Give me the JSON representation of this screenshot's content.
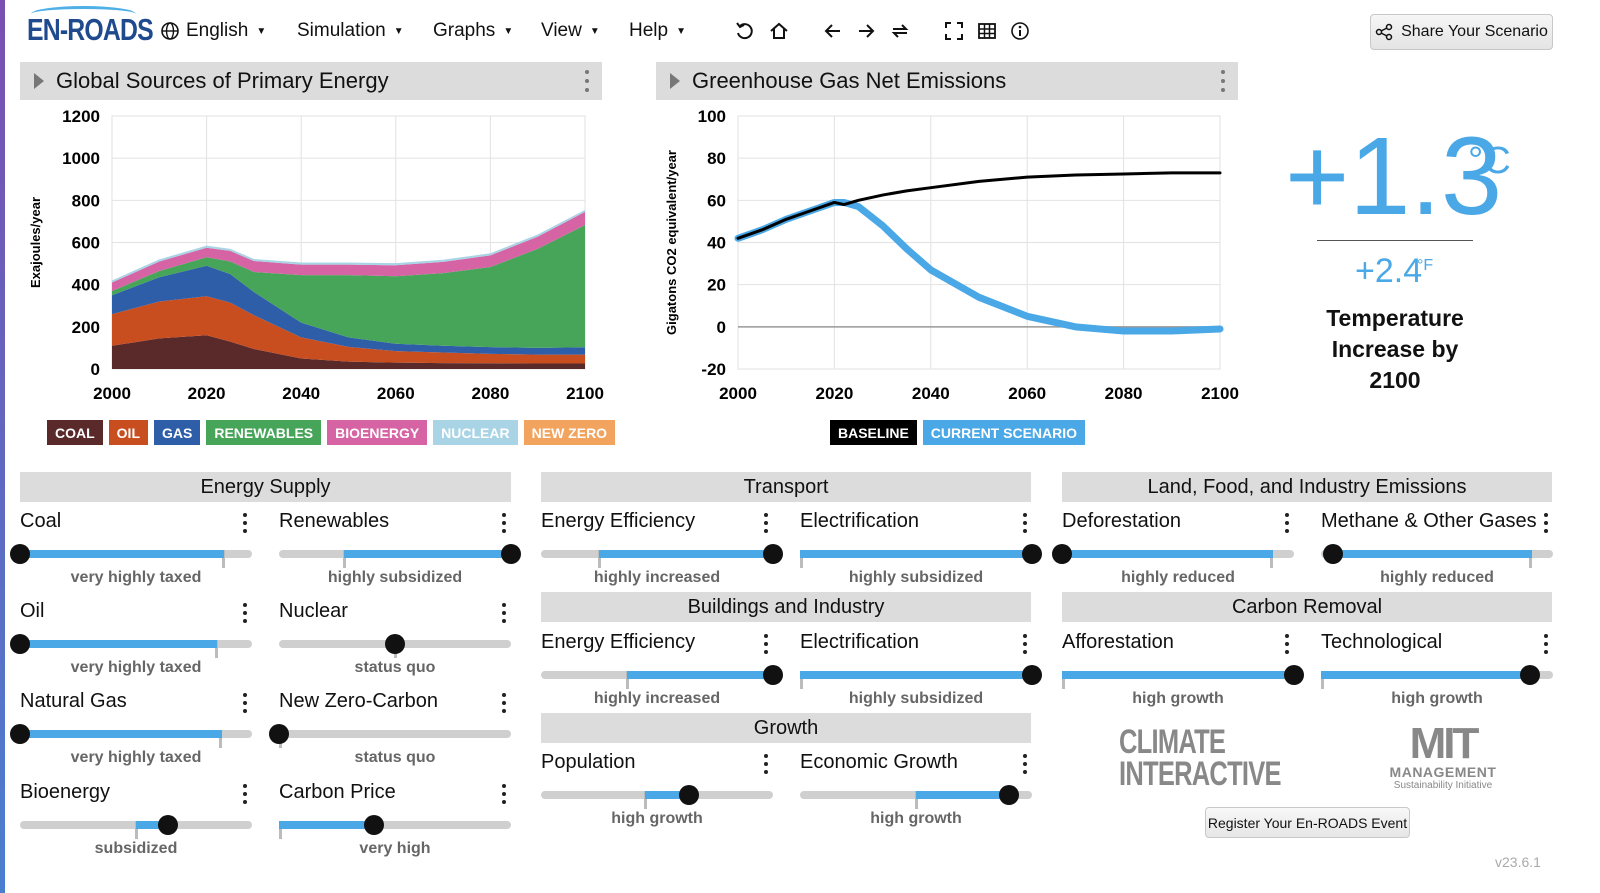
{
  "app": {
    "logo": "EN-ROADS",
    "version": "v23.6.1"
  },
  "menus": {
    "language": "English",
    "simulation": "Simulation",
    "graphs": "Graphs",
    "view": "View",
    "help": "Help"
  },
  "toolbar_icons": [
    "undo-icon",
    "home-icon",
    "back-icon",
    "forward-icon",
    "redo-icon",
    "fullscreen-icon",
    "table-icon",
    "info-icon"
  ],
  "share": {
    "label": "Share Your Scenario"
  },
  "graph1": {
    "title": "Global Sources of Primary Energy",
    "legend": [
      {
        "label": "COAL",
        "color": "#5a2a2a"
      },
      {
        "label": "OIL",
        "color": "#c94e1f"
      },
      {
        "label": "GAS",
        "color": "#2e5ea8"
      },
      {
        "label": "RENEWABLES",
        "color": "#47a55a"
      },
      {
        "label": "BIOENERGY",
        "color": "#d664a4"
      },
      {
        "label": "NUCLEAR",
        "color": "#a8d4e6"
      },
      {
        "label": "NEW ZERO",
        "color": "#f2a45e"
      }
    ]
  },
  "graph2": {
    "title": "Greenhouse Gas Net Emissions",
    "legend": [
      {
        "label": "BASELINE",
        "color": "#000000"
      },
      {
        "label": "CURRENT SCENARIO",
        "color": "#4aa8e6"
      }
    ]
  },
  "chart_data": [
    {
      "type": "area",
      "title": "Global Sources of Primary Energy",
      "ylabel": "Exajoules/year",
      "xlabel": "",
      "xlim": [
        2000,
        2100
      ],
      "ylim": [
        0,
        1200
      ],
      "xticks": [
        2000,
        2020,
        2040,
        2060,
        2080,
        2100
      ],
      "yticks": [
        0,
        200,
        400,
        600,
        800,
        1000,
        1200
      ],
      "grid": true,
      "stacked": true,
      "x": [
        2000,
        2010,
        2020,
        2025,
        2030,
        2040,
        2050,
        2060,
        2070,
        2080,
        2090,
        2100
      ],
      "series": [
        {
          "name": "COAL",
          "values": [
            110,
            145,
            160,
            130,
            95,
            50,
            35,
            30,
            28,
            27,
            26,
            26
          ]
        },
        {
          "name": "OIL",
          "values": [
            150,
            175,
            185,
            185,
            160,
            100,
            70,
            55,
            50,
            45,
            42,
            42
          ]
        },
        {
          "name": "GAS",
          "values": [
            90,
            115,
            145,
            135,
            110,
            70,
            45,
            35,
            32,
            32,
            32,
            35
          ]
        },
        {
          "name": "RENEWABLES",
          "values": [
            20,
            30,
            40,
            60,
            95,
            225,
            295,
            320,
            345,
            380,
            470,
            580
          ]
        },
        {
          "name": "BIOENERGY",
          "values": [
            40,
            45,
            45,
            50,
            52,
            50,
            50,
            52,
            53,
            55,
            58,
            62
          ]
        },
        {
          "name": "NUCLEAR",
          "values": [
            10,
            10,
            10,
            10,
            10,
            10,
            10,
            10,
            10,
            10,
            10,
            10
          ]
        },
        {
          "name": "NEW ZERO",
          "values": [
            0,
            0,
            0,
            0,
            0,
            0,
            0,
            0,
            0,
            0,
            0,
            0
          ]
        }
      ]
    },
    {
      "type": "line",
      "title": "Greenhouse Gas Net Emissions",
      "ylabel": "Gigatons CO2 equivalent/year",
      "xlabel": "",
      "xlim": [
        2000,
        2100
      ],
      "ylim": [
        -20,
        100
      ],
      "xticks": [
        2000,
        2020,
        2040,
        2060,
        2080,
        2100
      ],
      "yticks": [
        -20,
        0,
        20,
        40,
        60,
        80,
        100
      ],
      "grid": true,
      "x": [
        2000,
        2005,
        2010,
        2015,
        2020,
        2022,
        2025,
        2030,
        2035,
        2040,
        2050,
        2060,
        2070,
        2080,
        2090,
        2100
      ],
      "series": [
        {
          "name": "BASELINE",
          "values": [
            42,
            46,
            51,
            55,
            59,
            58,
            60,
            62.5,
            64.5,
            66,
            69,
            71,
            72,
            72.5,
            73,
            73
          ]
        },
        {
          "name": "CURRENT SCENARIO",
          "values": [
            42,
            46,
            51,
            55,
            59,
            59,
            57,
            48,
            37,
            27,
            14,
            5,
            0,
            -2,
            -2,
            -1
          ]
        }
      ]
    }
  ],
  "temperature": {
    "celsius": "+1.3",
    "celsius_unit": "°C",
    "fahrenheit": "+2.4",
    "fahrenheit_unit": "°F",
    "label": "Temperature Increase by 2100"
  },
  "sections": {
    "energy_supply": "Energy Supply",
    "transport": "Transport",
    "buildings": "Buildings and Industry",
    "growth": "Growth",
    "land": "Land, Food, and Industry Emissions",
    "carbon_removal": "Carbon Removal"
  },
  "sliders": {
    "coal": {
      "label": "Coal",
      "value": "very highly taxed",
      "knob": 0,
      "fill_from": 0,
      "fill_to": 0.88,
      "tick": 0.88
    },
    "oil": {
      "label": "Oil",
      "value": "very highly taxed",
      "knob": 0,
      "fill_from": 0,
      "fill_to": 0.85,
      "tick": 0.85
    },
    "natural_gas": {
      "label": "Natural Gas",
      "value": "very highly taxed",
      "knob": 0,
      "fill_from": 0,
      "fill_to": 0.87,
      "tick": 0.87
    },
    "bioenergy": {
      "label": "Bioenergy",
      "value": "subsidized",
      "knob": 0.64,
      "fill_from": 0.5,
      "fill_to": 0.64,
      "tick": 0.5
    },
    "renewables": {
      "label": "Renewables",
      "value": "highly subsidized",
      "knob": 1,
      "fill_from": 0.28,
      "fill_to": 1,
      "tick": 0.28
    },
    "nuclear": {
      "label": "Nuclear",
      "value": "status quo",
      "knob": 0.5,
      "fill_from": 0.5,
      "fill_to": 0.5,
      "tick": 0.5
    },
    "new_zero_carbon": {
      "label": "New Zero-Carbon",
      "value": "status quo",
      "knob": 0,
      "fill_from": 0,
      "fill_to": 0,
      "tick": 0
    },
    "carbon_price": {
      "label": "Carbon Price",
      "value": "very high",
      "knob": 0.41,
      "fill_from": 0,
      "fill_to": 0.41,
      "tick": 0
    },
    "transport_efficiency": {
      "label": "Energy Efficiency",
      "value": "highly increased",
      "knob": 1,
      "fill_from": 0.25,
      "fill_to": 1,
      "tick": 0.25
    },
    "transport_electrification": {
      "label": "Electrification",
      "value": "highly subsidized",
      "knob": 1,
      "fill_from": 0,
      "fill_to": 1,
      "tick": 0
    },
    "buildings_efficiency": {
      "label": "Energy Efficiency",
      "value": "highly increased",
      "knob": 1,
      "fill_from": 0.37,
      "fill_to": 1,
      "tick": 0.37
    },
    "buildings_electrification": {
      "label": "Electrification",
      "value": "highly subsidized",
      "knob": 1,
      "fill_from": 0,
      "fill_to": 1,
      "tick": 0
    },
    "population": {
      "label": "Population",
      "value": "high growth",
      "knob": 0.64,
      "fill_from": 0.45,
      "fill_to": 0.64,
      "tick": 0.45
    },
    "economic_growth": {
      "label": "Economic Growth",
      "value": "high growth",
      "knob": 0.9,
      "fill_from": 0.5,
      "fill_to": 0.9,
      "tick": 0.5
    },
    "deforestation": {
      "label": "Deforestation",
      "value": "highly reduced",
      "knob": 0,
      "fill_from": 0,
      "fill_to": 0.91,
      "tick": 0.91
    },
    "methane": {
      "label": "Methane & Other Gases",
      "value": "highly reduced",
      "knob": 0.05,
      "fill_from": 0.05,
      "fill_to": 0.91,
      "tick": 0.91
    },
    "afforestation": {
      "label": "Afforestation",
      "value": "high growth",
      "knob": 1,
      "fill_from": 0,
      "fill_to": 1,
      "tick": 0
    },
    "technological": {
      "label": "Technological",
      "value": "high growth",
      "knob": 0.9,
      "fill_from": 0,
      "fill_to": 0.9,
      "tick": 0
    }
  },
  "logos": {
    "ci_line1": "CLIMATE",
    "ci_line2": "INTERACTIVE",
    "mit_line1": "MIT",
    "mit_line2": "MANAGEMENT",
    "mit_line3": "Sustainability Initiative"
  },
  "register": {
    "label": "Register Your En-ROADS Event"
  }
}
